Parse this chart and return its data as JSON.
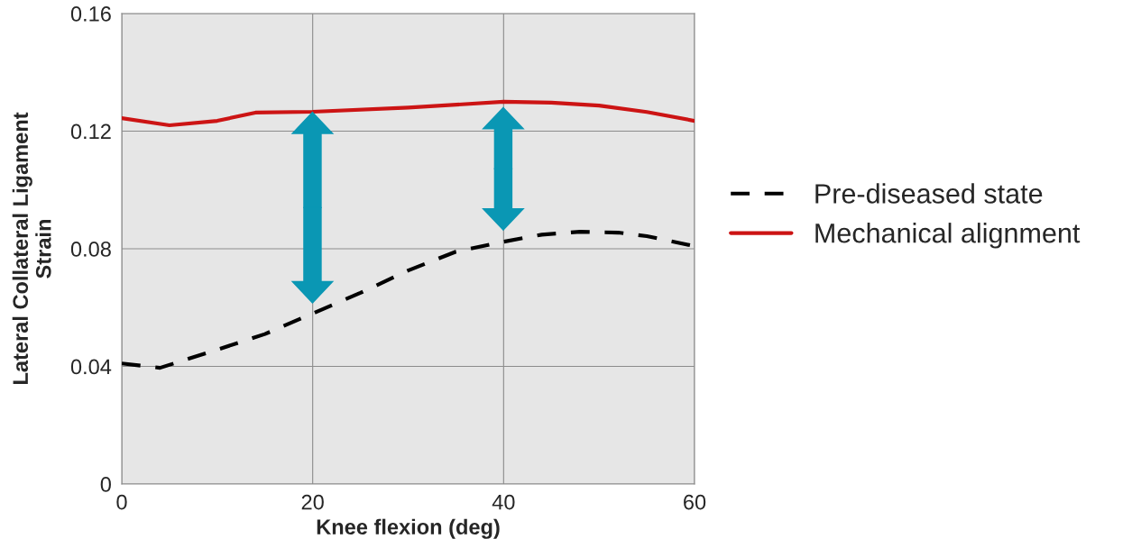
{
  "chart_data": {
    "type": "line",
    "xlabel": "Knee flexion (deg)",
    "ylabel": "Lateral Collateral Ligament\nStrain",
    "series": [
      {
        "name": "Pre-diseased state",
        "color": "#000000",
        "line_style": "dashed",
        "x": [
          0,
          4,
          10,
          15,
          20,
          25,
          30,
          35,
          40,
          44,
          48,
          52,
          55,
          60
        ],
        "values": [
          0.041,
          0.0395,
          0.0457,
          0.051,
          0.058,
          0.065,
          0.0726,
          0.079,
          0.0824,
          0.0848,
          0.0858,
          0.0855,
          0.0843,
          0.0809
        ]
      },
      {
        "name": "Mechanical alignment",
        "color": "#cc1414",
        "line_style": "solid",
        "x": [
          0,
          5,
          10,
          14,
          20,
          30,
          40,
          45,
          50,
          55,
          60
        ],
        "values": [
          0.1244,
          0.122,
          0.1235,
          0.1263,
          0.1266,
          0.128,
          0.13,
          0.1297,
          0.1287,
          0.1265,
          0.1235
        ]
      }
    ],
    "xlim": [
      0,
      60
    ],
    "xticks": [
      0,
      20,
      40,
      60
    ],
    "ylim": [
      0,
      0.16
    ],
    "yticks": [
      0,
      0.04,
      0.08,
      0.12,
      0.16
    ],
    "grid": true,
    "legend": "right"
  }
}
